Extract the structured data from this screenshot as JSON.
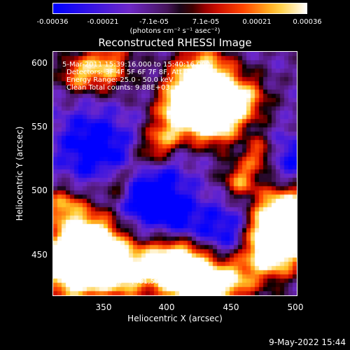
{
  "colorbar": {
    "tick_labels": [
      "-0.00036",
      "-0.00021",
      "-7.1e-05",
      "7.1e-05",
      "0.00021",
      "0.00036"
    ],
    "units": "(photons cm⁻² s⁻¹ asec⁻²)",
    "vmin": -0.00036,
    "vmax": 0.00036
  },
  "chart_data": {
    "type": "heatmap",
    "title": "Reconstructed RHESSI Image",
    "xlabel": "Heliocentric X (arcsec)",
    "ylabel": "Heliocentric Y (arcsec)",
    "xlim": [
      310,
      500
    ],
    "ylim": [
      410,
      610
    ],
    "xticks": [
      "350",
      "400",
      "450",
      "500"
    ],
    "yticks": [
      "450",
      "500",
      "550",
      "600"
    ],
    "peak": [
      431,
      598
    ],
    "colormap": "RHESSI blue-purple-red-yellow-white",
    "colors": {
      "low": "#0000ff",
      "mid": "#7030b0",
      "high": "#ff2000",
      "top": "#ffffff"
    }
  },
  "annotations": {
    "time_range": "5-Mar-2011 15:39:16.000 to 15:40:16.000",
    "detectors": "Detectors: 3F 4F 5F 6F 7F 8F, Att 0",
    "energy": "Energy Range: 25.0 - 50.0 keV",
    "clean": "Clean     Total counts: 9.88E+03",
    "peak": "Position of Peak = [431,598]"
  },
  "footer": {
    "datestamp": "9-May-2022 15:44"
  }
}
